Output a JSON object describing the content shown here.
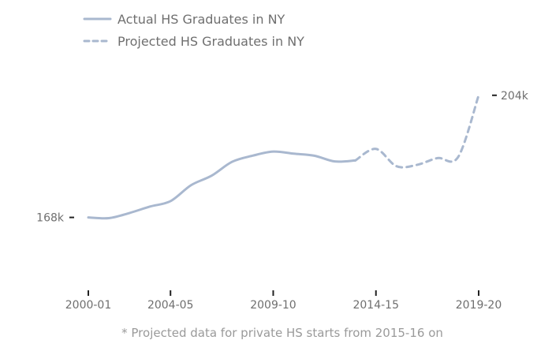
{
  "chart_data": {
    "type": "line",
    "title": "",
    "xlabel": "",
    "ylabel": "",
    "x": [
      "2000-01",
      "2001-02",
      "2002-03",
      "2003-04",
      "2004-05",
      "2005-06",
      "2006-07",
      "2007-08",
      "2008-09",
      "2009-10",
      "2010-11",
      "2011-12",
      "2012-13",
      "2013-14",
      "2014-15",
      "2015-16",
      "2016-17",
      "2017-18",
      "2018-19",
      "2019-20"
    ],
    "series": [
      {
        "name": "Actual HS Graduates in NY",
        "style": "solid",
        "values": [
          168000,
          167800,
          169300,
          171200,
          172800,
          177500,
          180300,
          184400,
          186200,
          187400,
          186800,
          186200,
          184500,
          184800,
          null,
          null,
          null,
          null,
          null,
          null
        ]
      },
      {
        "name": "Projected HS Graduates in NY",
        "style": "dashed",
        "values": [
          null,
          null,
          null,
          null,
          null,
          null,
          null,
          null,
          null,
          null,
          null,
          null,
          null,
          184800,
          188200,
          183100,
          183500,
          185500,
          185800,
          204000
        ]
      }
    ],
    "axis_labels": {
      "ticks": [
        "2000-01",
        "2004-05",
        "2009-10",
        "2014-15",
        "2019-20"
      ]
    },
    "endpoint_labels": {
      "start": "168k",
      "end": "204k"
    },
    "ylim": [
      150000,
      210000
    ],
    "line_color": "#a9b8cf",
    "grid": false,
    "legend_position": "top-left",
    "footnote": "* Projected data for private HS starts from 2015-16 on"
  }
}
